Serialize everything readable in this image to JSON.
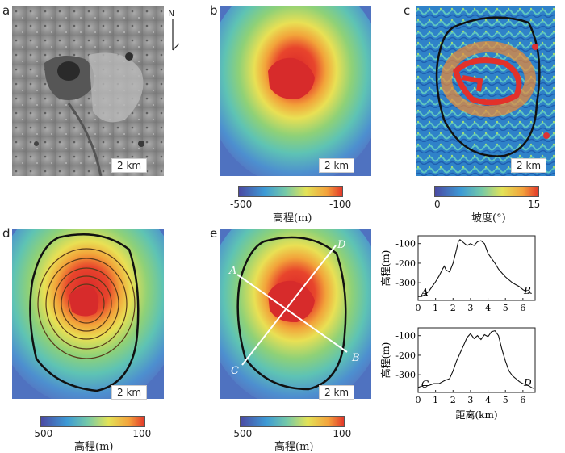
{
  "panels": {
    "a": {
      "label": "a",
      "north": "N",
      "scale": "2 km"
    },
    "b": {
      "label": "b",
      "scale": "2 km"
    },
    "c": {
      "label": "c",
      "scale": "2 km"
    },
    "d": {
      "label": "d",
      "scale": "2 km"
    },
    "e": {
      "label": "e",
      "scale": "2 km",
      "line_labels": [
        "A",
        "B",
        "C",
        "D"
      ]
    }
  },
  "colorbars": {
    "elev_b": {
      "min": "-500",
      "max": "-100",
      "title": "高程(m)"
    },
    "slope_c": {
      "min": "0",
      "max": "15",
      "title": "坡度(°)"
    },
    "elev_d": {
      "min": "-500",
      "max": "-100",
      "title": "高程(m)"
    },
    "elev_e": {
      "min": "-500",
      "max": "-100",
      "title": "高程(m)"
    }
  },
  "chart_data": [
    {
      "type": "line",
      "title": "",
      "ylabel": "高程(m)",
      "xlabel": "",
      "xlim": [
        0,
        6.7
      ],
      "ylim": [
        -390,
        -60
      ],
      "xticks": [
        "0",
        "1",
        "2",
        "3",
        "4",
        "5",
        "6"
      ],
      "yticks": [
        "-100",
        "-200",
        "-300"
      ],
      "start_label": "A",
      "end_label": "B",
      "x": [
        0,
        0.2,
        0.4,
        0.6,
        0.8,
        1.0,
        1.2,
        1.4,
        1.5,
        1.6,
        1.8,
        2.0,
        2.2,
        2.3,
        2.4,
        2.6,
        2.8,
        3.0,
        3.2,
        3.4,
        3.6,
        3.8,
        4.0,
        4.2,
        4.4,
        4.6,
        4.8,
        5.0,
        5.2,
        5.4,
        5.6,
        5.8,
        6.0,
        6.2,
        6.5
      ],
      "y": [
        -370,
        -370,
        -360,
        -345,
        -320,
        -295,
        -265,
        -230,
        -215,
        -235,
        -245,
        -200,
        -130,
        -90,
        -80,
        -95,
        -110,
        -100,
        -110,
        -90,
        -85,
        -100,
        -150,
        -175,
        -200,
        -230,
        -250,
        -270,
        -285,
        -300,
        -310,
        -320,
        -335,
        -345,
        -355
      ]
    },
    {
      "type": "line",
      "title": "",
      "ylabel": "高程(m)",
      "xlabel": "距离(km)",
      "xlim": [
        0,
        6.7
      ],
      "ylim": [
        -390,
        -60
      ],
      "xticks": [
        "0",
        "1",
        "2",
        "3",
        "4",
        "5",
        "6"
      ],
      "yticks": [
        "-100",
        "-200",
        "-300"
      ],
      "start_label": "C",
      "end_label": "D",
      "x": [
        0,
        0.3,
        0.6,
        0.9,
        1.2,
        1.5,
        1.8,
        2.0,
        2.2,
        2.4,
        2.6,
        2.8,
        3.0,
        3.2,
        3.4,
        3.6,
        3.8,
        4.0,
        4.2,
        4.4,
        4.6,
        4.8,
        5.0,
        5.2,
        5.4,
        5.6,
        5.8,
        6.0,
        6.2,
        6.4,
        6.6
      ],
      "y": [
        -365,
        -355,
        -355,
        -345,
        -345,
        -330,
        -320,
        -280,
        -230,
        -190,
        -150,
        -110,
        -90,
        -115,
        -100,
        -120,
        -95,
        -105,
        -80,
        -75,
        -100,
        -170,
        -230,
        -280,
        -305,
        -320,
        -335,
        -345,
        -350,
        -360,
        -370
      ]
    }
  ]
}
